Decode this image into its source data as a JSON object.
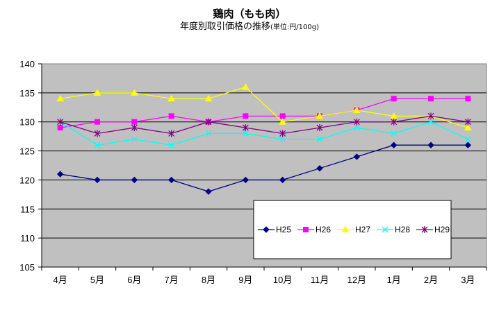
{
  "chart_data": {
    "type": "line",
    "title": "鶏肉（もも肉）",
    "subtitle": "年度別取引価格の推移",
    "unit_note": "(単位:円/100g)",
    "categories": [
      "4月",
      "5月",
      "6月",
      "7月",
      "8月",
      "9月",
      "10月",
      "11月",
      "12月",
      "1月",
      "2月",
      "3月"
    ],
    "ylim": [
      105,
      140
    ],
    "yticks": [
      105,
      110,
      115,
      120,
      125,
      130,
      135,
      140
    ],
    "grid": true,
    "legend": "bottom-right inside plot",
    "series": [
      {
        "name": "H25",
        "color": "#000080",
        "marker": "diamond",
        "values": [
          121,
          120,
          120,
          120,
          118,
          120,
          120,
          122,
          124,
          126,
          126,
          126
        ]
      },
      {
        "name": "H26",
        "color": "#ff00ff",
        "marker": "square",
        "values": [
          129,
          130,
          130,
          131,
          130,
          131,
          131,
          131,
          132,
          134,
          134,
          134
        ]
      },
      {
        "name": "H27",
        "color": "#ffff00",
        "marker": "triangle",
        "values": [
          134,
          135,
          135,
          134,
          134,
          136,
          130,
          131,
          132,
          131,
          131,
          129
        ]
      },
      {
        "name": "H28",
        "color": "#00ffff",
        "marker": "x",
        "values": [
          130,
          126,
          127,
          126,
          128,
          128,
          127,
          127,
          129,
          128,
          130,
          127
        ]
      },
      {
        "name": "H29",
        "color": "#800080",
        "marker": "star",
        "values": [
          130,
          128,
          129,
          128,
          130,
          129,
          128,
          129,
          130,
          130,
          131,
          130
        ]
      }
    ]
  }
}
